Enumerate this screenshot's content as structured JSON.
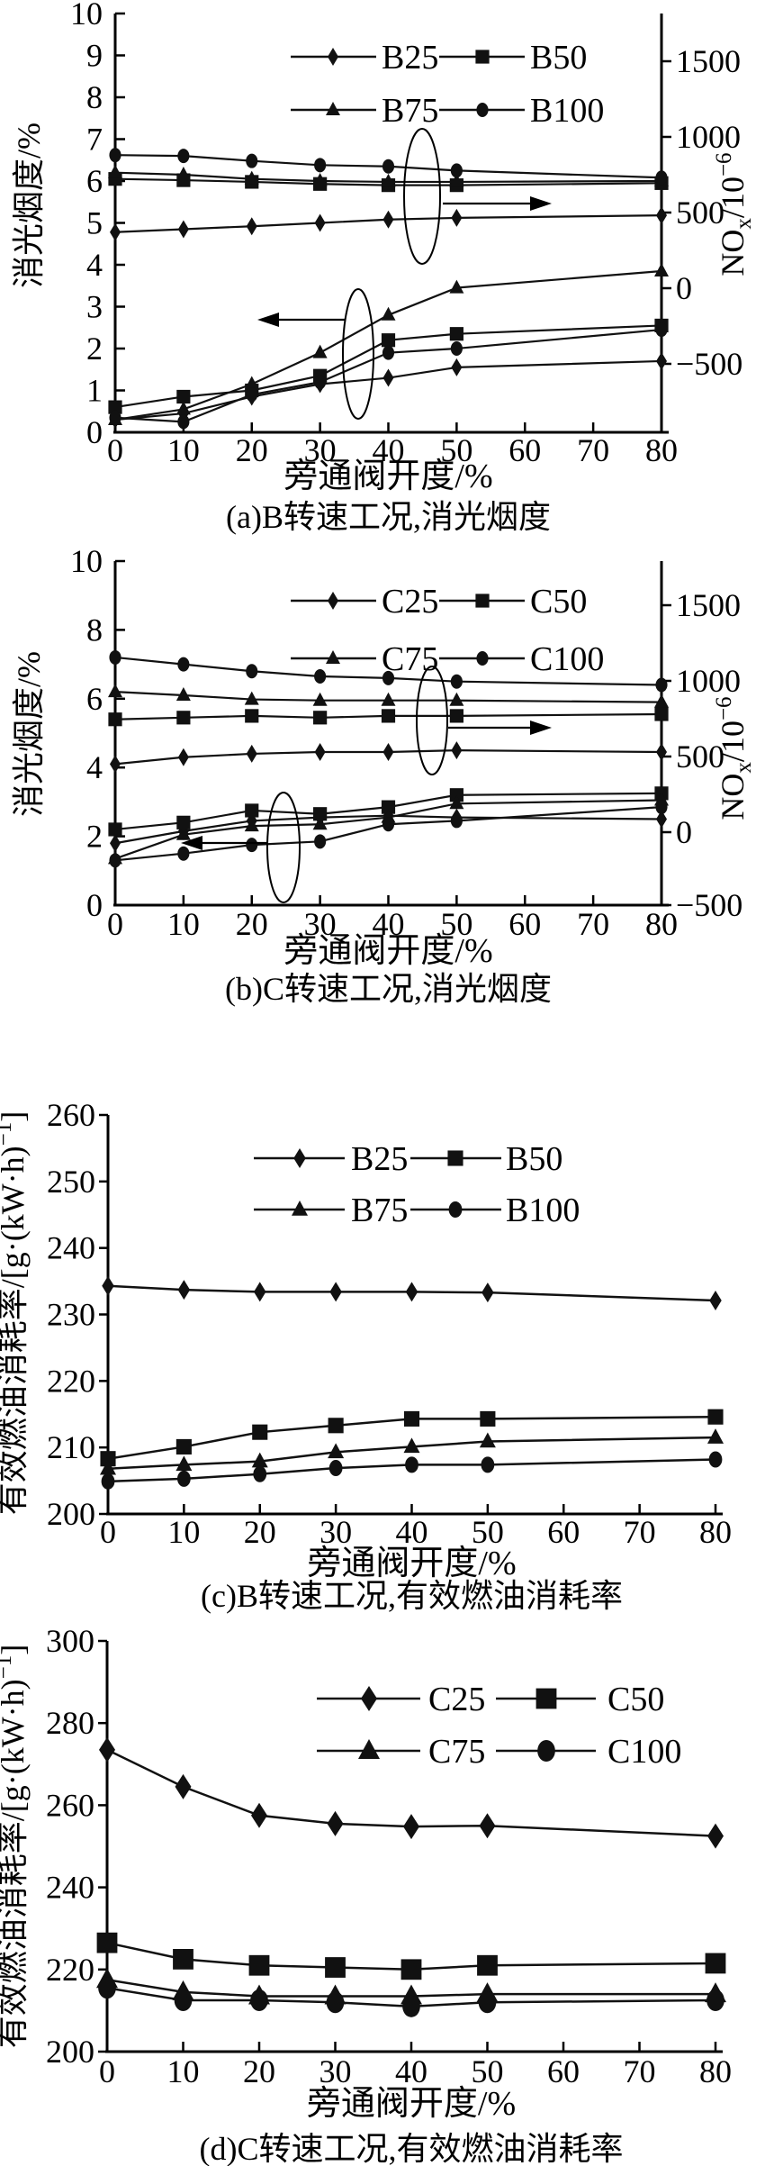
{
  "figure": {
    "xlabel": "旁通阀开度/%",
    "x_tick_labels": [
      "0",
      "10",
      "20",
      "30",
      "40",
      "50",
      "60",
      "70",
      "80"
    ]
  },
  "chart_data": [
    {
      "id": "a",
      "type": "line",
      "caption": "(a)B转速工况,消光烟度",
      "xlabel": "旁通阀开度/%",
      "ylabel_left": "消光烟度/%",
      "ylabel_right": "NOx/10−6",
      "ylabel_left_parts": [
        {
          "t": "消光烟度/%"
        }
      ],
      "ylabel_right_parts": [
        {
          "t": "NO"
        },
        {
          "t": "x",
          "shift": "sub"
        },
        {
          "t": "/10"
        },
        {
          "t": "−6",
          "shift": "sup"
        }
      ],
      "x": [
        0,
        10,
        20,
        30,
        40,
        50,
        80
      ],
      "x_ticks": [
        "0",
        "10",
        "20",
        "30",
        "40",
        "50",
        "60",
        "70",
        "80"
      ],
      "ylim_left": [
        0,
        10
      ],
      "left_tick_labels": [
        "0",
        "1",
        "2",
        "3",
        "4",
        "5",
        "6",
        "7",
        "8",
        "9",
        "10"
      ],
      "right_tick_labels": [
        "1500",
        "1000",
        "500",
        "0",
        "−500"
      ],
      "legend": [
        {
          "label": "B25",
          "marker": "diamond"
        },
        {
          "label": "B50",
          "marker": "square"
        },
        {
          "label": "B75",
          "marker": "triangle"
        },
        {
          "label": "B100",
          "marker": "circle"
        }
      ],
      "plot_scale_note": "left-axis-units",
      "series": [
        {
          "name": "B25",
          "marker": "diamond",
          "axis": "right",
          "quantity": "NOx",
          "values": [
            4.78,
            4.85,
            4.92,
            5.0,
            5.08,
            5.12,
            5.18
          ]
        },
        {
          "name": "B50",
          "marker": "square",
          "axis": "right",
          "quantity": "NOx",
          "values": [
            6.05,
            6.02,
            5.98,
            5.93,
            5.9,
            5.9,
            5.95
          ]
        },
        {
          "name": "B75",
          "marker": "triangle",
          "axis": "right",
          "quantity": "NOx",
          "values": [
            6.2,
            6.15,
            6.05,
            6.0,
            5.98,
            5.98,
            6.0
          ]
        },
        {
          "name": "B100",
          "marker": "circle",
          "axis": "right",
          "quantity": "NOx",
          "values": [
            6.62,
            6.6,
            6.48,
            6.38,
            6.35,
            6.25,
            6.08
          ]
        },
        {
          "name": "B25",
          "marker": "diamond",
          "axis": "left",
          "quantity": "smoke",
          "values": [
            0.3,
            0.45,
            0.85,
            1.15,
            1.3,
            1.55,
            1.7
          ]
        },
        {
          "name": "B50",
          "marker": "square",
          "axis": "left",
          "quantity": "smoke",
          "values": [
            0.6,
            0.85,
            1.0,
            1.35,
            2.2,
            2.35,
            2.55
          ]
        },
        {
          "name": "B75",
          "marker": "triangle",
          "axis": "left",
          "quantity": "smoke",
          "values": [
            0.3,
            0.55,
            1.15,
            1.9,
            2.8,
            3.45,
            3.85
          ]
        },
        {
          "name": "B100",
          "marker": "circle",
          "axis": "left",
          "quantity": "smoke",
          "values": [
            0.35,
            0.25,
            0.9,
            1.2,
            1.9,
            2.0,
            2.45
          ]
        }
      ],
      "annotations": [
        {
          "group": "right-axis-series",
          "arrow_direction": "right"
        },
        {
          "group": "left-axis-series",
          "arrow_direction": "left"
        }
      ]
    },
    {
      "id": "b",
      "type": "line",
      "caption": "(b)C转速工况,消光烟度",
      "xlabel": "旁通阀开度/%",
      "ylabel_left": "消光烟度/%",
      "ylabel_right": "NOx/10−6",
      "ylabel_left_parts": [
        {
          "t": "消光烟度/%"
        }
      ],
      "ylabel_right_parts": [
        {
          "t": "NO"
        },
        {
          "t": "x",
          "shift": "sub"
        },
        {
          "t": "/10"
        },
        {
          "t": "−6",
          "shift": "sup"
        }
      ],
      "x": [
        0,
        10,
        20,
        30,
        40,
        50,
        80
      ],
      "x_ticks": [
        "0",
        "10",
        "20",
        "30",
        "40",
        "50",
        "60",
        "70",
        "80"
      ],
      "ylim_left": [
        0,
        10
      ],
      "left_tick_labels": [
        "0",
        "2",
        "4",
        "6",
        "8",
        "10"
      ],
      "right_tick_labels": [
        "1500",
        "1000",
        "500",
        "0",
        "−500"
      ],
      "legend": [
        {
          "label": "C25",
          "marker": "diamond"
        },
        {
          "label": "C50",
          "marker": "square"
        },
        {
          "label": "C75",
          "marker": "triangle"
        },
        {
          "label": "C100",
          "marker": "circle"
        }
      ],
      "plot_scale_note": "left-axis-units",
      "series": [
        {
          "name": "C25",
          "marker": "diamond",
          "axis": "right",
          "quantity": "NOx",
          "values": [
            4.1,
            4.3,
            4.4,
            4.45,
            4.45,
            4.5,
            4.45
          ]
        },
        {
          "name": "C50",
          "marker": "square",
          "axis": "right",
          "quantity": "NOx",
          "values": [
            5.4,
            5.45,
            5.5,
            5.45,
            5.5,
            5.5,
            5.55
          ]
        },
        {
          "name": "C75",
          "marker": "triangle",
          "axis": "right",
          "quantity": "NOx",
          "values": [
            6.2,
            6.1,
            5.98,
            5.95,
            5.95,
            5.95,
            5.9
          ]
        },
        {
          "name": "C100",
          "marker": "circle",
          "axis": "right",
          "quantity": "NOx",
          "values": [
            7.2,
            7.0,
            6.8,
            6.65,
            6.6,
            6.5,
            6.4
          ]
        },
        {
          "name": "C25",
          "marker": "diamond",
          "axis": "left",
          "quantity": "smoke",
          "values": [
            1.8,
            2.15,
            2.45,
            2.55,
            2.6,
            2.55,
            2.5
          ]
        },
        {
          "name": "C50",
          "marker": "square",
          "axis": "left",
          "quantity": "smoke",
          "values": [
            2.2,
            2.4,
            2.75,
            2.65,
            2.85,
            3.2,
            3.25
          ]
        },
        {
          "name": "C75",
          "marker": "triangle",
          "axis": "left",
          "quantity": "smoke",
          "values": [
            1.35,
            2.05,
            2.3,
            2.35,
            2.55,
            2.95,
            3.05
          ]
        },
        {
          "name": "C100",
          "marker": "circle",
          "axis": "left",
          "quantity": "smoke",
          "values": [
            1.3,
            1.5,
            1.75,
            1.85,
            2.35,
            2.45,
            2.85
          ]
        }
      ],
      "annotations": [
        {
          "group": "right-axis-series",
          "arrow_direction": "right"
        },
        {
          "group": "left-axis-series",
          "arrow_direction": "left"
        }
      ]
    },
    {
      "id": "c",
      "type": "line",
      "caption": "(c)B转速工况,有效燃油消耗率",
      "xlabel": "旁通阀开度/%",
      "ylabel_left": "有效燃油消耗率/[g·(kW·h)−1]",
      "ylabel_left_parts": [
        {
          "t": "有效燃油消耗率/[g·(kW·h)"
        },
        {
          "t": "−1",
          "shift": "sup"
        },
        {
          "t": "]"
        }
      ],
      "x": [
        0,
        10,
        20,
        30,
        40,
        50,
        80
      ],
      "x_ticks": [
        "0",
        "10",
        "20",
        "30",
        "40",
        "50",
        "60",
        "70",
        "80"
      ],
      "ylim_left": [
        200,
        260
      ],
      "left_tick_labels": [
        "200",
        "210",
        "220",
        "230",
        "240",
        "250",
        "260"
      ],
      "legend": [
        {
          "label": "B25",
          "marker": "diamond"
        },
        {
          "label": "B50",
          "marker": "square"
        },
        {
          "label": "B75",
          "marker": "triangle"
        },
        {
          "label": "B100",
          "marker": "circle"
        }
      ],
      "series": [
        {
          "name": "B25",
          "marker": "diamond",
          "axis": "left",
          "quantity": "bsfc",
          "values": [
            234.3,
            233.7,
            233.4,
            233.4,
            233.4,
            233.3,
            232.1
          ]
        },
        {
          "name": "B50",
          "marker": "square",
          "axis": "left",
          "quantity": "bsfc",
          "values": [
            208.3,
            210.1,
            212.3,
            213.3,
            214.3,
            214.3,
            214.6
          ]
        },
        {
          "name": "B75",
          "marker": "triangle",
          "axis": "left",
          "quantity": "bsfc",
          "values": [
            206.8,
            207.4,
            207.9,
            209.3,
            210.1,
            210.9,
            211.5
          ]
        },
        {
          "name": "B100",
          "marker": "circle",
          "axis": "left",
          "quantity": "bsfc",
          "values": [
            204.9,
            205.3,
            206.0,
            206.9,
            207.4,
            207.4,
            208.2
          ]
        }
      ],
      "annotations": []
    },
    {
      "id": "d",
      "type": "line",
      "caption": "(d)C转速工况,有效燃油消耗率",
      "xlabel": "旁通阀开度/%",
      "ylabel_left": "有效燃油消耗率/[g·(kW·h)−1]",
      "ylabel_left_parts": [
        {
          "t": "有效燃油消耗率/[g·(kW·h)"
        },
        {
          "t": "−1",
          "shift": "sup"
        },
        {
          "t": "]"
        }
      ],
      "x": [
        0,
        10,
        20,
        30,
        40,
        50,
        80
      ],
      "x_ticks": [
        "0",
        "10",
        "20",
        "30",
        "40",
        "50",
        "60",
        "70",
        "80"
      ],
      "ylim_left": [
        200,
        300
      ],
      "left_tick_labels": [
        "200",
        "220",
        "240",
        "260",
        "280",
        "300"
      ],
      "legend": [
        {
          "label": "C25",
          "marker": "diamond"
        },
        {
          "label": "C50",
          "marker": "square"
        },
        {
          "label": "C75",
          "marker": "triangle"
        },
        {
          "label": "C100",
          "marker": "circle"
        }
      ],
      "series": [
        {
          "name": "C25",
          "marker": "diamond",
          "axis": "left",
          "quantity": "bsfc",
          "values": [
            273.5,
            264.5,
            257.5,
            255.5,
            254.8,
            255.0,
            252.5
          ]
        },
        {
          "name": "C50",
          "marker": "square",
          "axis": "left",
          "quantity": "bsfc",
          "values": [
            226.5,
            222.5,
            221.0,
            220.5,
            220.0,
            221.0,
            221.5
          ]
        },
        {
          "name": "C75",
          "marker": "triangle",
          "axis": "left",
          "quantity": "bsfc",
          "values": [
            217.5,
            214.5,
            213.5,
            213.5,
            213.5,
            214.0,
            214.0
          ]
        },
        {
          "name": "C100",
          "marker": "circle",
          "axis": "left",
          "quantity": "bsfc",
          "values": [
            215.5,
            212.5,
            212.5,
            212.0,
            211.0,
            212.0,
            212.5
          ]
        }
      ],
      "annotations": []
    }
  ],
  "colors": {
    "ink": "#111111",
    "background": "#ffffff"
  }
}
